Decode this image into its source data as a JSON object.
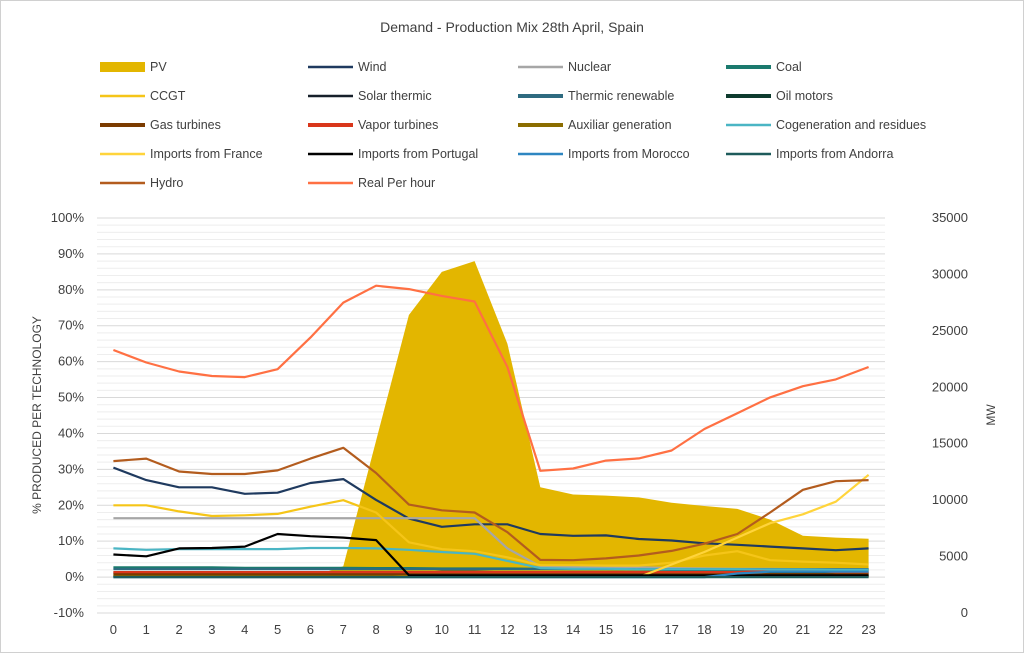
{
  "chart_data": {
    "type": "line",
    "title": "Demand - Production Mix 28th April, Spain",
    "xlabel": "",
    "ylabel": "% PRODUCED PER TECHNOLOGY",
    "y2label": "MW",
    "categories": [
      "0",
      "1",
      "2",
      "3",
      "4",
      "5",
      "6",
      "7",
      "8",
      "9",
      "10",
      "11",
      "12",
      "13",
      "14",
      "15",
      "16",
      "17",
      "18",
      "19",
      "20",
      "21",
      "22",
      "23"
    ],
    "ylim": [
      -10,
      100
    ],
    "y_ticks": [
      "-10%",
      "0%",
      "10%",
      "20%",
      "30%",
      "40%",
      "50%",
      "60%",
      "70%",
      "80%",
      "90%",
      "100%"
    ],
    "y2lim": [
      0,
      35000
    ],
    "y2_ticks": [
      "0",
      "5000",
      "10000",
      "15000",
      "20000",
      "25000",
      "30000",
      "35000"
    ],
    "grid": true,
    "legend_position": "top",
    "series": [
      {
        "name": "PV",
        "kind": "area",
        "axis": "left",
        "color": "#e3b600",
        "values": [
          0,
          0,
          0,
          0,
          0,
          0,
          0,
          3,
          38,
          73,
          85,
          88,
          65,
          25,
          23,
          22.7,
          22.2,
          20.7,
          19.8,
          19,
          16,
          11.5,
          11,
          10.7
        ]
      },
      {
        "name": "Wind",
        "kind": "line",
        "axis": "left",
        "color": "#1f3a5f",
        "values": [
          30.5,
          27,
          25,
          25,
          23.2,
          23.5,
          26.2,
          27.3,
          21.5,
          16.3,
          14,
          14.7,
          14.7,
          12,
          11.5,
          11.6,
          10.6,
          10.2,
          9.4,
          9,
          8.5,
          8,
          7.5,
          8
        ]
      },
      {
        "name": "Nuclear",
        "kind": "line",
        "axis": "left",
        "color": "#a6a6a6",
        "values": [
          16.4,
          16.4,
          16.4,
          16.4,
          16.4,
          16.4,
          16.4,
          16.4,
          16.4,
          16.4,
          16.4,
          16.4,
          8,
          3,
          2.8,
          2.8,
          2.7,
          2.5,
          2.4,
          2.3,
          2.3,
          2.2,
          2.2,
          2.2
        ]
      },
      {
        "name": "Coal",
        "kind": "line",
        "axis": "left",
        "color": "#1b7a6e",
        "values": [
          2.7,
          2.7,
          2.7,
          2.7,
          2.6,
          2.6,
          2.6,
          2.6,
          2.5,
          2.5,
          2.4,
          2.4,
          2.4,
          2.3,
          2.2,
          2.2,
          2.1,
          2,
          2,
          2,
          2,
          2,
          2,
          2
        ]
      },
      {
        "name": "CCGT",
        "kind": "line",
        "axis": "left",
        "color": "#f5c518",
        "values": [
          20,
          20,
          18.3,
          17,
          17.2,
          17.6,
          19.6,
          21.4,
          18,
          9.7,
          7.8,
          7.2,
          5.5,
          3.3,
          3.3,
          3.2,
          3.2,
          4,
          6,
          7.2,
          4.7,
          4.3,
          4,
          3.5
        ]
      },
      {
        "name": "Solar thermic",
        "kind": "line",
        "axis": "left",
        "color": "#17202a",
        "values": [
          0.3,
          0.3,
          0.3,
          0.3,
          0.3,
          0.3,
          0.3,
          0.3,
          0.5,
          1,
          1.5,
          1.5,
          1.3,
          1,
          0.8,
          0.7,
          0.6,
          0.5,
          0.5,
          0.4,
          0.4,
          0.3,
          0.3,
          0.3
        ]
      },
      {
        "name": "Thermic renewable",
        "kind": "line",
        "axis": "left",
        "color": "#2e6b80",
        "values": [
          2.2,
          2.2,
          2.2,
          2.2,
          2.2,
          2.2,
          2.2,
          2.2,
          2.2,
          2.2,
          2.2,
          2.2,
          2.2,
          2.2,
          2.2,
          2.2,
          2.2,
          2.2,
          2.2,
          2.2,
          2.2,
          2.2,
          2.2,
          2.2
        ]
      },
      {
        "name": "Oil motors",
        "kind": "line",
        "axis": "left",
        "color": "#0e3b2e",
        "values": [
          1.2,
          1.2,
          1.2,
          1.2,
          1.2,
          1.2,
          1.2,
          1.2,
          1.2,
          1.2,
          1.2,
          1.2,
          1.2,
          1.2,
          1.2,
          1.2,
          1.2,
          1.2,
          1.2,
          1.2,
          1.2,
          1.2,
          1.2,
          1.2
        ]
      },
      {
        "name": "Gas turbines",
        "kind": "line",
        "axis": "left",
        "color": "#7b3b00",
        "values": [
          0.8,
          0.8,
          0.8,
          0.8,
          0.8,
          0.8,
          0.8,
          0.8,
          0.8,
          0.8,
          0.8,
          0.8,
          0.8,
          0.8,
          0.8,
          0.8,
          0.8,
          0.8,
          0.8,
          0.8,
          0.8,
          0.8,
          0.8,
          0.8
        ]
      },
      {
        "name": "Vapor turbines",
        "kind": "line",
        "axis": "left",
        "color": "#d9361b",
        "values": [
          1.4,
          1.4,
          1.4,
          1.4,
          1.4,
          1.4,
          1.4,
          1.4,
          1.4,
          1.4,
          1.4,
          1.4,
          1.4,
          1.4,
          1.4,
          1.4,
          1.4,
          1.4,
          1.4,
          1.4,
          1.8,
          2,
          1.4,
          1.4
        ]
      },
      {
        "name": "Auxiliar generation",
        "kind": "line",
        "axis": "left",
        "color": "#8b6d00",
        "values": [
          0.2,
          0.2,
          0.2,
          0.2,
          0.2,
          0.2,
          0.2,
          0.2,
          0.2,
          0.2,
          0.2,
          0.2,
          0.2,
          0.2,
          0.2,
          0.2,
          0.2,
          0.2,
          0.2,
          0.2,
          0.2,
          0.2,
          0.2,
          0.2
        ]
      },
      {
        "name": "Cogeneration and residues",
        "kind": "line",
        "axis": "left",
        "color": "#4ab5c4",
        "values": [
          8,
          7.6,
          7.8,
          7.8,
          7.8,
          7.8,
          8.1,
          8.1,
          8,
          7.6,
          7,
          6.5,
          4.5,
          2.5,
          2.3,
          2.3,
          2.2,
          2.2,
          2.2,
          2.2,
          2.1,
          2.1,
          2,
          2
        ]
      },
      {
        "name": "Imports from France",
        "kind": "line",
        "axis": "left",
        "color": "#ffd43b",
        "values": [
          null,
          null,
          null,
          null,
          null,
          null,
          null,
          null,
          null,
          null,
          null,
          null,
          null,
          null,
          null,
          null,
          0,
          3.5,
          7,
          11,
          15,
          17.5,
          21,
          28.5
        ]
      },
      {
        "name": "Imports from Portugal",
        "kind": "line",
        "axis": "left",
        "color": "#000000",
        "values": [
          6.3,
          5.8,
          8,
          8.1,
          8.5,
          12,
          11.4,
          11,
          10.3,
          0.5,
          0.5,
          0.5,
          0.5,
          0.5,
          0.5,
          0.5,
          0.5,
          0.5,
          0.5,
          0.5,
          0.5,
          0.5,
          0.5,
          0.5
        ]
      },
      {
        "name": "Imports from Morocco",
        "kind": "line",
        "axis": "left",
        "color": "#2e86c1",
        "values": [
          0,
          0,
          0,
          0,
          0,
          0,
          0,
          0,
          0,
          0,
          0,
          0,
          0,
          0,
          0,
          0,
          0,
          0,
          0,
          1,
          1.5,
          1.5,
          1.5,
          1.5
        ]
      },
      {
        "name": "Imports from Andorra",
        "kind": "line",
        "axis": "left",
        "color": "#1e5b5b",
        "values": [
          0,
          0,
          0,
          0,
          0,
          0,
          0,
          0,
          0,
          0,
          0,
          0,
          0,
          0,
          0,
          0,
          0,
          0,
          0,
          0,
          0,
          0,
          0,
          0
        ]
      },
      {
        "name": "Hydro",
        "kind": "line",
        "axis": "left",
        "color": "#b35c1e",
        "values": [
          32.3,
          33,
          29.4,
          28.7,
          28.7,
          29.7,
          33,
          36,
          29,
          20.2,
          18.6,
          18,
          12.5,
          4.8,
          4.7,
          5.2,
          6,
          7.3,
          9.3,
          12,
          18,
          24.3,
          26.7,
          27
        ]
      },
      {
        "name": "Real Per hour",
        "kind": "line",
        "axis": "right",
        "color": "#ff7043",
        "values": [
          23300,
          22200,
          21400,
          21000,
          20900,
          21600,
          24400,
          27500,
          29000,
          28700,
          28100,
          27600,
          21800,
          12600,
          12800,
          13500,
          13700,
          14400,
          16300,
          17700,
          19100,
          20100,
          20700,
          21800
        ]
      }
    ]
  }
}
